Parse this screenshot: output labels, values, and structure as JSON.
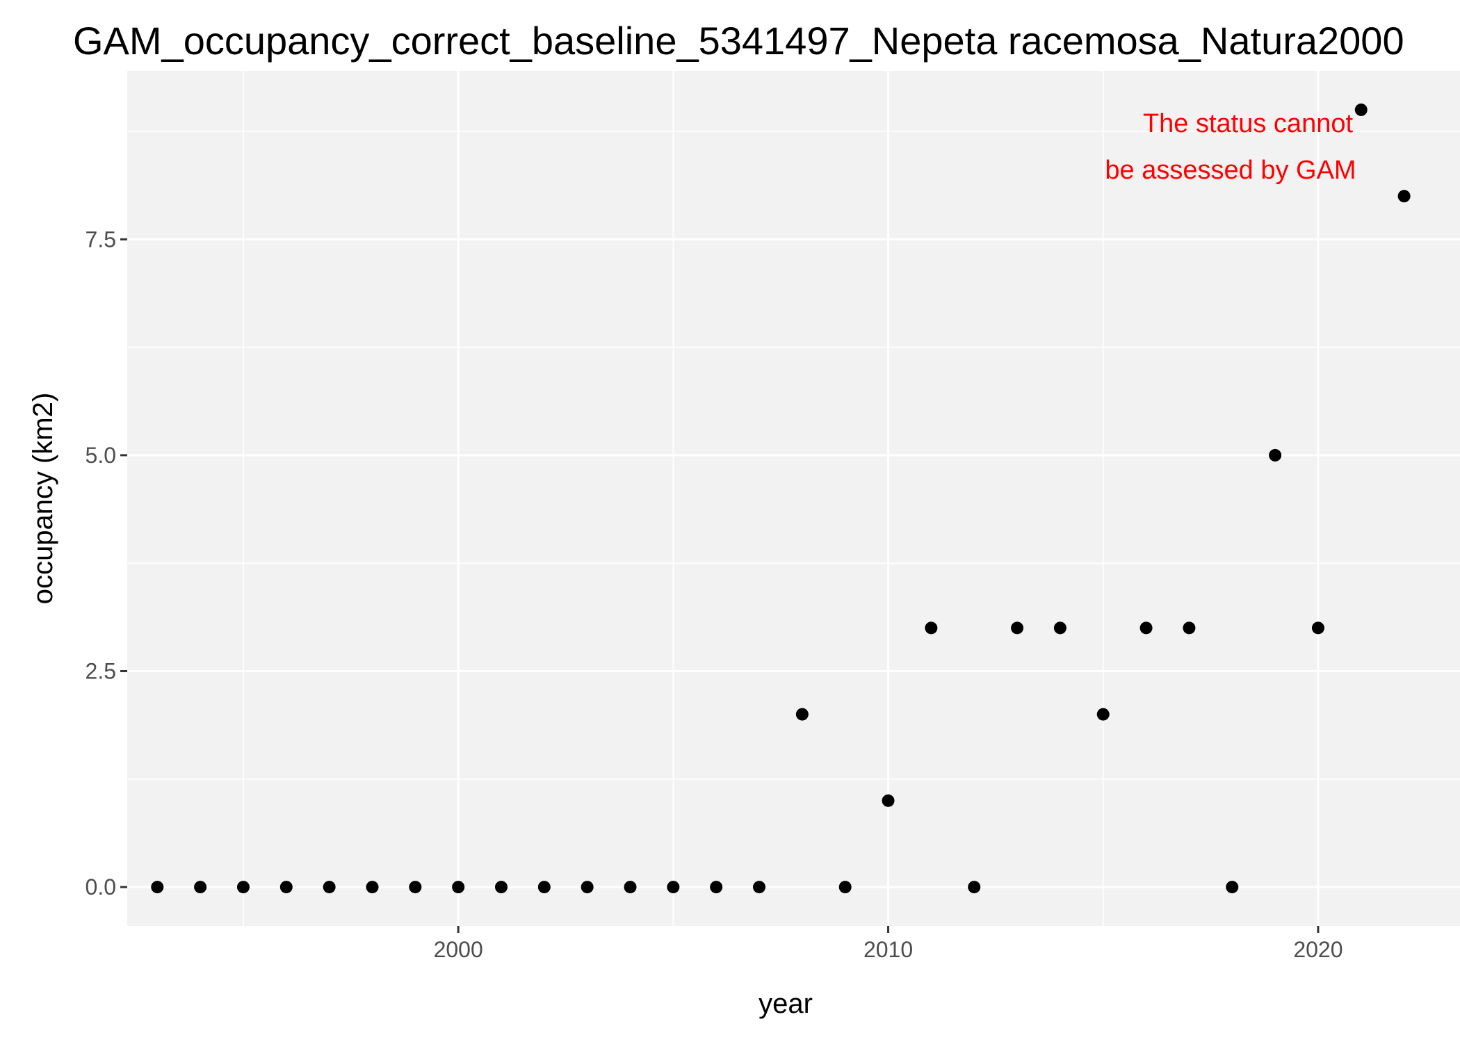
{
  "chart_data": {
    "type": "scatter",
    "title": "GAM_occupancy_correct_baseline_5341497_Nepeta racemosa_Natura2000",
    "xlabel": "year",
    "ylabel": "occupancy (km2)",
    "xlim": [
      1992.3,
      2023.3
    ],
    "ylim": [
      -0.45,
      9.45
    ],
    "x_ticks": [
      2000,
      2010,
      2020
    ],
    "x_tick_labels": [
      "2000",
      "2010",
      "2020"
    ],
    "x_minor_ticks": [
      1995,
      2005,
      2015
    ],
    "y_ticks": [
      0,
      2.5,
      5,
      7.5
    ],
    "y_tick_labels": [
      "0.0",
      "2.5",
      "5.0",
      "7.5"
    ],
    "y_minor_ticks": [
      1.25,
      3.75,
      6.25,
      8.75
    ],
    "grid": true,
    "x": [
      1993,
      1994,
      1995,
      1996,
      1997,
      1998,
      1999,
      2000,
      2001,
      2002,
      2003,
      2004,
      2005,
      2006,
      2007,
      2008,
      2009,
      2010,
      2011,
      2012,
      2013,
      2014,
      2015,
      2016,
      2017,
      2018,
      2019,
      2020,
      2021,
      2022
    ],
    "y": [
      0,
      0,
      0,
      0,
      0,
      0,
      0,
      0,
      0,
      0,
      0,
      0,
      0,
      0,
      0,
      2,
      0,
      1,
      3,
      0,
      3,
      3,
      2,
      3,
      3,
      0,
      5,
      3,
      9,
      8
    ],
    "annotation": {
      "lines": [
        "The status cannot",
        "be assessed by GAM"
      ],
      "color": "#ff0000",
      "placement": "top-right"
    },
    "colors": {
      "panel_background": "#f2f2f2",
      "grid_line": "#ffffff",
      "point": "#000000"
    }
  }
}
